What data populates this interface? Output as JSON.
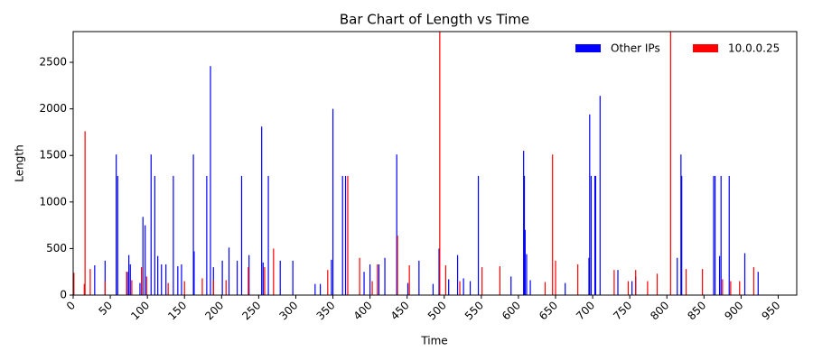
{
  "chart_data": {
    "type": "bar",
    "title": "Bar Chart of Length vs Time",
    "x_label": "Time",
    "y_label": "Length",
    "xlim": [
      0,
      975
    ],
    "ylim": [
      0,
      2830
    ],
    "xticks": [
      0,
      50,
      100,
      150,
      200,
      250,
      300,
      350,
      400,
      450,
      500,
      550,
      600,
      650,
      700,
      750,
      800,
      850,
      900,
      950
    ],
    "yticks": [
      0,
      500,
      1000,
      1500,
      2000,
      2500
    ],
    "legend": "upper right",
    "grid": false,
    "series": [
      {
        "name": "Other IPs",
        "color": "#0000ff",
        "x": [
          29,
          43,
          58,
          60,
          73,
          75,
          77,
          90,
          94,
          97,
          105,
          110,
          114,
          119,
          125,
          135,
          141,
          146,
          162,
          163,
          180,
          185,
          189,
          201,
          210,
          221,
          227,
          237,
          254,
          256,
          263,
          279,
          296,
          326,
          333,
          348,
          350,
          363,
          367,
          392,
          400,
          412,
          420,
          436,
          451,
          466,
          485,
          493,
          506,
          518,
          526,
          535,
          546,
          590,
          607,
          608,
          609,
          611,
          616,
          663,
          695,
          696,
          698,
          703,
          704,
          710,
          734,
          753,
          758,
          814,
          819,
          820,
          863,
          865,
          871,
          873,
          884,
          905,
          923
        ],
        "values": [
          320,
          370,
          1510,
          1280,
          250,
          430,
          330,
          130,
          840,
          750,
          1510,
          1280,
          420,
          330,
          330,
          1280,
          310,
          330,
          1510,
          470,
          1280,
          2460,
          300,
          370,
          510,
          370,
          1280,
          430,
          1810,
          350,
          1280,
          370,
          370,
          120,
          120,
          380,
          2000,
          1280,
          1280,
          250,
          330,
          330,
          400,
          1510,
          130,
          370,
          120,
          500,
          170,
          430,
          180,
          150,
          1280,
          200,
          1550,
          1280,
          700,
          440,
          160,
          130,
          400,
          1940,
          1280,
          1280,
          1280,
          2140,
          270,
          150,
          200,
          400,
          1510,
          1280,
          1280,
          1280,
          420,
          1280,
          1280,
          450,
          250
        ]
      },
      {
        "name": "10.0.0.25",
        "color": "#ff0000",
        "x": [
          1,
          15,
          16,
          23,
          43,
          72,
          79,
          92,
          99,
          128,
          150,
          174,
          189,
          206,
          236,
          258,
          270,
          343,
          370,
          386,
          403,
          410,
          437,
          453,
          494,
          502,
          521,
          551,
          575,
          636,
          646,
          650,
          680,
          729,
          748,
          758,
          774,
          787,
          805,
          826,
          848,
          875,
          886,
          898,
          917
        ],
        "values": [
          240,
          120,
          1760,
          280,
          150,
          250,
          160,
          300,
          200,
          130,
          150,
          180,
          160,
          160,
          300,
          300,
          500,
          270,
          1280,
          400,
          150,
          330,
          640,
          320,
          2830,
          320,
          150,
          300,
          310,
          140,
          1510,
          370,
          330,
          270,
          150,
          270,
          150,
          230,
          2830,
          280,
          280,
          170,
          150,
          150,
          300
        ]
      }
    ]
  }
}
